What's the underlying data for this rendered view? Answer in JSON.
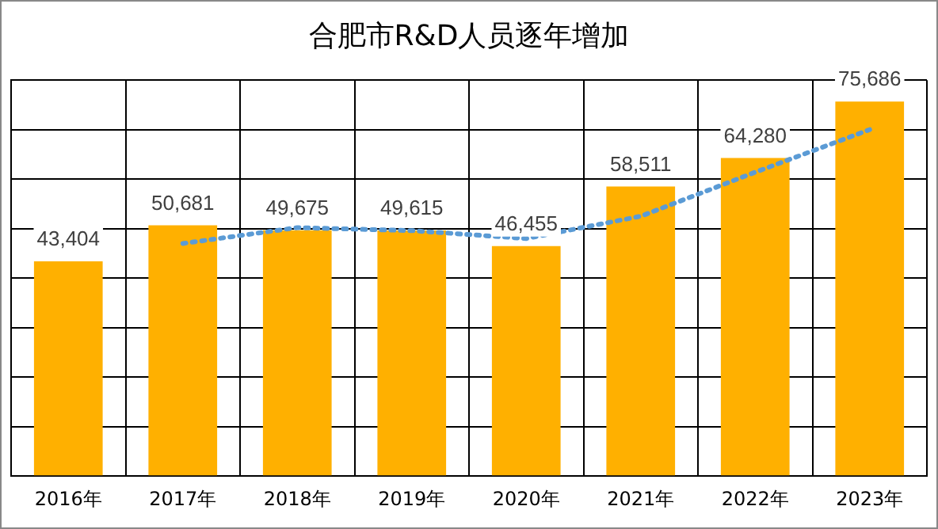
{
  "chart_data": {
    "type": "bar",
    "title": "合肥市R&D人员逐年增加",
    "categories": [
      "2016年",
      "2017年",
      "2018年",
      "2019年",
      "2020年",
      "2021年",
      "2022年",
      "2023年"
    ],
    "series": [
      {
        "color": "#ffb000",
        "values": [
          43404,
          50681,
          49675,
          49615,
          46455,
          58511,
          64280,
          75686
        ],
        "value_labels": [
          "43,404",
          "50,681",
          "49,675",
          "49,615",
          "46,455",
          "58,511",
          "64,280",
          "75,686"
        ]
      },
      {
        "type": "line",
        "color": "#5b9bd5",
        "line_style": "dotted",
        "marker": "none",
        "values": [
          null,
          47000,
          50200,
          49600,
          48000,
          52500,
          61400,
          70000
        ]
      }
    ],
    "tick_labels": "x",
    "grid": true,
    "legend": false
  }
}
